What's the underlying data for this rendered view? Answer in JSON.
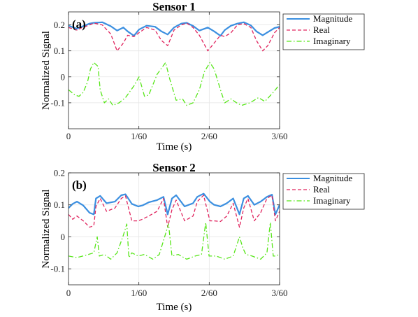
{
  "chart_data": [
    {
      "type": "line",
      "title": "Sensor 1",
      "panel_label": "(a)",
      "xlabel": "Time (s)",
      "ylabel": "Normalized Signal",
      "xlim": [
        0,
        0.05
      ],
      "ylim": [
        -0.2,
        0.25
      ],
      "x_ticks": [
        0,
        0.0166667,
        0.0333333,
        0.05
      ],
      "x_tick_labels": [
        "0",
        "1/60",
        "2/60",
        "3/60"
      ],
      "y_ticks": [
        -0.1,
        0,
        0.1,
        0.2
      ],
      "y_tick_labels": [
        "-0.1",
        "0",
        "0.1",
        "0.2"
      ],
      "grid": true,
      "legend_position": "outside-top-right",
      "series": [
        {
          "name": "Magnitude",
          "color": "#3b8fe0",
          "dash": "solid",
          "x": [
            0,
            0.002,
            0.003,
            0.005,
            0.006,
            0.008,
            0.01,
            0.0115,
            0.013,
            0.014,
            0.0155,
            0.0167,
            0.0185,
            0.0205,
            0.022,
            0.0235,
            0.025,
            0.0267,
            0.028,
            0.0295,
            0.031,
            0.033,
            0.0345,
            0.036,
            0.037,
            0.0385,
            0.04,
            0.0415,
            0.0432,
            0.0445,
            0.046,
            0.0472,
            0.0488,
            0.05
          ],
          "values": [
            0.197,
            0.185,
            0.192,
            0.205,
            0.208,
            0.21,
            0.195,
            0.178,
            0.19,
            0.175,
            0.158,
            0.182,
            0.197,
            0.193,
            0.175,
            0.163,
            0.19,
            0.205,
            0.208,
            0.196,
            0.178,
            0.19,
            0.175,
            0.158,
            0.18,
            0.197,
            0.205,
            0.21,
            0.198,
            0.175,
            0.16,
            0.172,
            0.188,
            0.193
          ]
        },
        {
          "name": "Real",
          "color": "#e0245e",
          "dash": "dashed",
          "x": [
            0,
            0.002,
            0.003,
            0.005,
            0.006,
            0.008,
            0.01,
            0.0115,
            0.013,
            0.014,
            0.0155,
            0.0167,
            0.0185,
            0.0205,
            0.022,
            0.0235,
            0.025,
            0.0267,
            0.028,
            0.0295,
            0.031,
            0.033,
            0.0345,
            0.036,
            0.037,
            0.0385,
            0.04,
            0.0415,
            0.0432,
            0.0445,
            0.046,
            0.0472,
            0.0488,
            0.05
          ],
          "values": [
            0.19,
            0.18,
            0.188,
            0.2,
            0.207,
            0.2,
            0.165,
            0.1,
            0.13,
            0.16,
            0.155,
            0.17,
            0.19,
            0.18,
            0.14,
            0.12,
            0.18,
            0.2,
            0.207,
            0.19,
            0.16,
            0.1,
            0.13,
            0.16,
            0.155,
            0.17,
            0.2,
            0.205,
            0.19,
            0.14,
            0.1,
            0.12,
            0.17,
            0.19
          ]
        },
        {
          "name": "Imaginary",
          "color": "#57e619",
          "dash": "dashdot",
          "x": [
            0,
            0.0015,
            0.0025,
            0.0035,
            0.0045,
            0.0052,
            0.006,
            0.007,
            0.0075,
            0.0085,
            0.0095,
            0.0105,
            0.012,
            0.0135,
            0.0155,
            0.0167,
            0.018,
            0.019,
            0.021,
            0.023,
            0.024,
            0.0255,
            0.027,
            0.028,
            0.0295,
            0.031,
            0.0322,
            0.0335,
            0.0345,
            0.036,
            0.037,
            0.0385,
            0.0398,
            0.041,
            0.043,
            0.045,
            0.0465,
            0.0485,
            0.05
          ],
          "values": [
            -0.05,
            -0.07,
            -0.075,
            -0.06,
            -0.02,
            0.03,
            0.055,
            0.04,
            -0.05,
            -0.1,
            -0.085,
            -0.11,
            -0.1,
            -0.08,
            -0.035,
            0.0,
            -0.075,
            -0.07,
            0.01,
            0.055,
            -0.01,
            -0.09,
            -0.085,
            -0.11,
            -0.1,
            -0.05,
            0.02,
            0.055,
            0.03,
            -0.05,
            -0.1,
            -0.085,
            -0.1,
            -0.11,
            -0.1,
            -0.08,
            -0.095,
            -0.06,
            -0.03
          ]
        }
      ]
    },
    {
      "type": "line",
      "title": "Sensor 2",
      "panel_label": "(b)",
      "xlabel": "Time (s)",
      "ylabel": "Normalized Signal",
      "xlim": [
        0,
        0.05
      ],
      "ylim": [
        -0.15,
        0.2
      ],
      "x_ticks": [
        0,
        0.0166667,
        0.0333333,
        0.05
      ],
      "x_tick_labels": [
        "0",
        "1/60",
        "2/60",
        "3/60"
      ],
      "y_ticks": [
        -0.1,
        0,
        0.1,
        0.2
      ],
      "y_tick_labels": [
        "-0.1",
        "0",
        "0.1",
        "0.2"
      ],
      "grid": true,
      "legend_position": "outside-top-right",
      "series": [
        {
          "name": "Magnitude",
          "color": "#3b8fe0",
          "dash": "solid",
          "x": [
            0,
            0.001,
            0.002,
            0.0035,
            0.005,
            0.006,
            0.0065,
            0.0075,
            0.009,
            0.011,
            0.0125,
            0.0135,
            0.015,
            0.0165,
            0.0175,
            0.019,
            0.021,
            0.0225,
            0.0235,
            0.0245,
            0.0255,
            0.0275,
            0.0295,
            0.0305,
            0.032,
            0.0335,
            0.0345,
            0.036,
            0.0375,
            0.039,
            0.0405,
            0.0415,
            0.0425,
            0.044,
            0.0455,
            0.047,
            0.0482,
            0.049,
            0.05
          ],
          "values": [
            0.09,
            0.103,
            0.11,
            0.098,
            0.075,
            0.07,
            0.12,
            0.128,
            0.105,
            0.11,
            0.13,
            0.133,
            0.103,
            0.095,
            0.098,
            0.108,
            0.115,
            0.125,
            0.07,
            0.12,
            0.13,
            0.095,
            0.105,
            0.125,
            0.135,
            0.11,
            0.1,
            0.095,
            0.105,
            0.12,
            0.07,
            0.12,
            0.128,
            0.1,
            0.11,
            0.125,
            0.132,
            0.07,
            0.1
          ]
        },
        {
          "name": "Real",
          "color": "#e0245e",
          "dash": "dashed",
          "x": [
            0,
            0.001,
            0.002,
            0.0035,
            0.005,
            0.006,
            0.0065,
            0.0075,
            0.009,
            0.011,
            0.0125,
            0.0135,
            0.015,
            0.0165,
            0.0175,
            0.019,
            0.021,
            0.0225,
            0.0235,
            0.0245,
            0.0255,
            0.0275,
            0.0295,
            0.0305,
            0.032,
            0.0335,
            0.0345,
            0.036,
            0.0375,
            0.039,
            0.0405,
            0.0415,
            0.0425,
            0.044,
            0.0455,
            0.047,
            0.0482,
            0.049,
            0.05
          ],
          "values": [
            0.07,
            0.055,
            0.065,
            0.05,
            0.03,
            0.035,
            0.095,
            0.12,
            0.08,
            0.09,
            0.12,
            0.128,
            0.05,
            0.05,
            0.055,
            0.065,
            0.08,
            0.12,
            0.03,
            0.085,
            0.115,
            0.05,
            0.065,
            0.11,
            0.13,
            0.05,
            0.05,
            0.048,
            0.065,
            0.105,
            0.03,
            0.09,
            0.12,
            0.05,
            0.075,
            0.12,
            0.13,
            0.05,
            0.08
          ]
        },
        {
          "name": "Imaginary",
          "color": "#57e619",
          "dash": "dashdot",
          "x": [
            0,
            0.002,
            0.004,
            0.006,
            0.0068,
            0.0073,
            0.0085,
            0.01,
            0.0115,
            0.013,
            0.0138,
            0.0143,
            0.015,
            0.0165,
            0.018,
            0.02,
            0.0215,
            0.023,
            0.0237,
            0.0245,
            0.026,
            0.028,
            0.03,
            0.0315,
            0.0325,
            0.0333,
            0.035,
            0.037,
            0.039,
            0.0405,
            0.0413,
            0.042,
            0.0435,
            0.0455,
            0.047,
            0.0478,
            0.0485,
            0.049,
            0.05
          ],
          "values": [
            -0.06,
            -0.065,
            -0.058,
            -0.05,
            0.0,
            -0.06,
            -0.055,
            -0.07,
            -0.05,
            0.005,
            0.04,
            -0.065,
            -0.05,
            -0.06,
            -0.055,
            -0.07,
            -0.055,
            0.01,
            0.04,
            -0.06,
            -0.055,
            -0.07,
            -0.06,
            -0.055,
            0.045,
            -0.06,
            -0.06,
            -0.07,
            -0.06,
            0.0,
            -0.035,
            -0.055,
            -0.06,
            -0.07,
            -0.05,
            0.045,
            -0.06,
            -0.06,
            -0.055
          ]
        }
      ]
    }
  ]
}
